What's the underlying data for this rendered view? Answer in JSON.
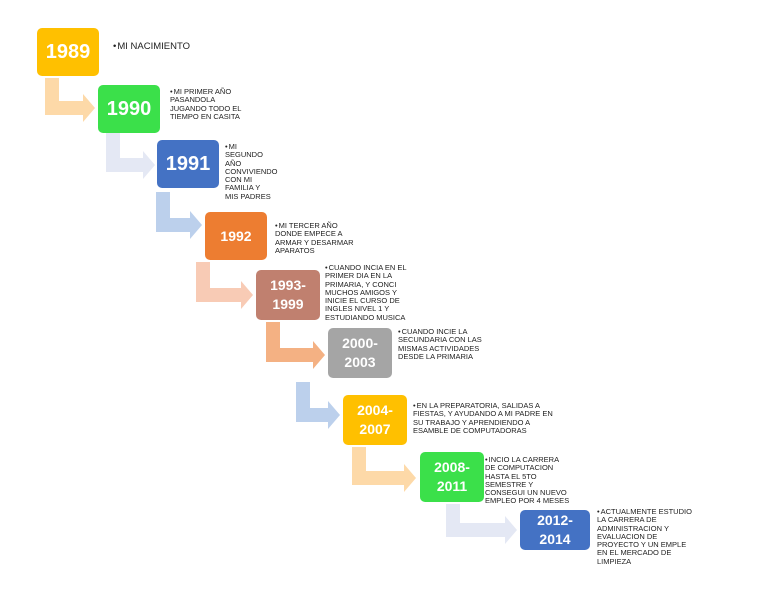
{
  "nodes": [
    {
      "year": "1989",
      "text": "MI NACIMIENTO"
    },
    {
      "year": "1990",
      "text": "MI PRIMER AÑO PASANDOLA JUGANDO TODO EL TIEMPO EN CASITA"
    },
    {
      "year": "1991",
      "text": "MI SEGUNDO AÑO CONVIVIENDO CON MI FAMILIA Y MIS PADRES"
    },
    {
      "year": "1992",
      "text": "MI TERCER AÑO DONDE EMPECE A ARMAR Y DESARMAR APARATOS"
    },
    {
      "year": "1993-1999",
      "text": "CUANDO INCIA EN EL PRIMER DIA EN LA PRIMARIA, Y CONCI MUCHOS AMIGOS Y INICIE EL CURSO DE INGLES NIVEL 1 Y ESTUDIANDO MUSICA"
    },
    {
      "year": "2000-2003",
      "text": "CUANDO INCIE LA SECUNDARIA CON LAS MISMAS ACTIVIDADES DESDE LA PRIMARIA"
    },
    {
      "year": "2004-2007",
      "text": "EN LA PREPARATORIA, SALIDAS A FIESTAS, Y AYUDANDO A MI PADRE EN SU TRABAJO Y APRENDIENDO A ESAMBLE DE COMPUTADORAS"
    },
    {
      "year": "2008-2011",
      "text": "INCIO LA CARRERA DE COMPUTACION HASTA EL 5TO SEMESTRE Y CONSEGUI UN NUEVO EMPLEO POR 4 MESES"
    },
    {
      "year": "2012-2014",
      "text": "ACTUALMENTE ESTUDIO LA CARRERA DE ADMINISTRACION Y EVALUACION DE PROYECTO Y UN EMPLE EN EL MERCADO DE LIMPIEZA"
    }
  ]
}
